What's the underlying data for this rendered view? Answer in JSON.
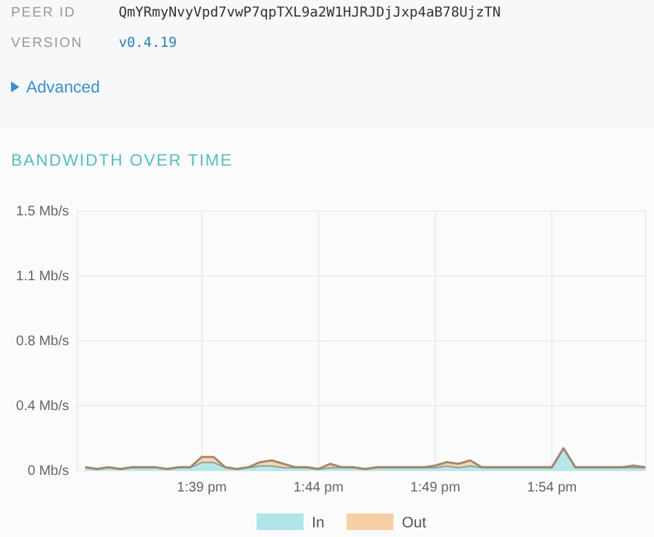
{
  "chart_data": {
    "type": "area",
    "title": "BANDWIDTH OVER TIME",
    "stacked": true,
    "annotations": [
      "PEER ID",
      "QmYRmyNvyVpd7vwP7qpTXL9a2W1HJRJDjJxp4aB78UjzTN",
      "VERSION",
      "v0.4.19",
      "Advanced"
    ],
    "x": [
      13.5667,
      13.575,
      13.5833,
      13.5917,
      13.6,
      13.6083,
      13.6167,
      13.625,
      13.6333,
      13.6417,
      13.65,
      13.6583,
      13.6667,
      13.675,
      13.6833,
      13.6917,
      13.7,
      13.7083,
      13.7167,
      13.725,
      13.7333,
      13.7417,
      13.75,
      13.7583,
      13.7667,
      13.775,
      13.7833,
      13.7917,
      13.8,
      13.8083,
      13.8167,
      13.825,
      13.8333,
      13.8417,
      13.85,
      13.8583,
      13.8667,
      13.875,
      13.8833,
      13.8917,
      13.9,
      13.9083,
      13.9167,
      13.925,
      13.9333,
      13.9417,
      13.95,
      13.9583,
      13.9667
    ],
    "series": [
      {
        "name": "In",
        "color": "#b0e4e6",
        "values": [
          0.02,
          0.01,
          0.02,
          0.01,
          0.02,
          0.02,
          0.02,
          0.01,
          0.02,
          0.02,
          0.05,
          0.05,
          0.02,
          0.01,
          0.02,
          0.03,
          0.03,
          0.02,
          0.02,
          0.02,
          0.01,
          0.02,
          0.02,
          0.02,
          0.01,
          0.02,
          0.02,
          0.02,
          0.02,
          0.02,
          0.02,
          0.03,
          0.02,
          0.03,
          0.02,
          0.02,
          0.02,
          0.02,
          0.02,
          0.02,
          0.02,
          0.13,
          0.02,
          0.02,
          0.02,
          0.02,
          0.02,
          0.02,
          0.02
        ]
      },
      {
        "name": "Out",
        "color": "#f7cfa5",
        "values": [
          0,
          0,
          0,
          0,
          0,
          0,
          0,
          0,
          0,
          0,
          0.03,
          0.03,
          0,
          0,
          0,
          0.02,
          0.03,
          0.02,
          0,
          0,
          0,
          0.02,
          0,
          0,
          0,
          0,
          0,
          0,
          0,
          0,
          0.01,
          0.02,
          0.02,
          0.03,
          0,
          0,
          0,
          0,
          0,
          0,
          0,
          0,
          0,
          0,
          0,
          0,
          0,
          0.01,
          0
        ]
      }
    ],
    "xlim": [
      13.561,
      13.967
    ],
    "xticks": [
      {
        "value": 13.65,
        "label": "1:39 pm"
      },
      {
        "value": 13.7333,
        "label": "1:44 pm"
      },
      {
        "value": 13.8167,
        "label": "1:49 pm"
      },
      {
        "value": 13.9,
        "label": "1:54 pm"
      }
    ],
    "ylim": [
      0,
      1.5
    ],
    "yticks": [
      {
        "value": 0,
        "label": "0 Mb/s"
      },
      {
        "value": 0.375,
        "label": "0.4 Mb/s"
      },
      {
        "value": 0.75,
        "label": "0.8 Mb/s"
      },
      {
        "value": 1.125,
        "label": "1.1 Mb/s"
      },
      {
        "value": 1.5,
        "label": "1.5 Mb/s"
      }
    ],
    "grid": true,
    "legend": "bottom"
  }
}
